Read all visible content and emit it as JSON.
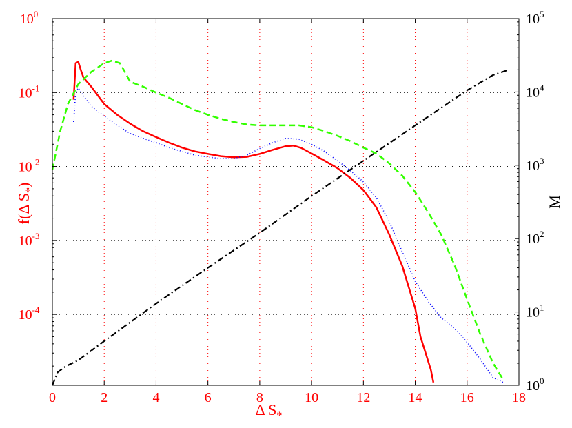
{
  "chart_data": {
    "type": "line",
    "xlabel": "Δ S",
    "xlabel_sub": "*",
    "ylabel": "f(Δ S",
    "ylabel_sub": "*",
    "ylabel_close": ")",
    "y2label": "M",
    "xlim": [
      0,
      18
    ],
    "ylim": [
      1.1e-05,
      1
    ],
    "y2lim": [
      1,
      100000
    ],
    "yscale": "log",
    "y2scale": "log",
    "grid": true,
    "x_ticks": [
      "0",
      "2",
      "4",
      "6",
      "8",
      "10",
      "12",
      "14",
      "16",
      "18"
    ],
    "y_ticks": [
      {
        "base": "10",
        "exp": "0",
        "value": 1
      },
      {
        "base": "10",
        "exp": "-1",
        "value": 0.1
      },
      {
        "base": "10",
        "exp": "-2",
        "value": 0.01
      },
      {
        "base": "10",
        "exp": "-3",
        "value": 0.001
      },
      {
        "base": "10",
        "exp": "-4",
        "value": 0.0001
      }
    ],
    "y2_ticks": [
      {
        "base": "10",
        "exp": "0",
        "value": 1
      },
      {
        "base": "10",
        "exp": "1",
        "value": 10
      },
      {
        "base": "10",
        "exp": "2",
        "value": 100
      },
      {
        "base": "10",
        "exp": "3",
        "value": 1000
      },
      {
        "base": "10",
        "exp": "4",
        "value": 10000
      },
      {
        "base": "10",
        "exp": "5",
        "value": 100000
      }
    ],
    "series": [
      {
        "axis": "left",
        "color": "#ff0000",
        "style": "solid",
        "x": [
          0.82,
          0.9,
          1.0,
          1.1,
          1.2,
          1.3,
          1.5,
          2.0,
          2.5,
          3.0,
          3.5,
          4.0,
          4.5,
          5.0,
          5.5,
          6.0,
          6.5,
          7.0,
          7.5,
          8.0,
          8.5,
          9.0,
          9.3,
          9.6,
          10.0,
          10.5,
          11.0,
          11.5,
          12.0,
          12.5,
          13.0,
          13.5,
          14.0,
          14.2,
          14.4,
          14.6,
          14.7
        ],
        "y": [
          0.08,
          0.25,
          0.26,
          0.2,
          0.16,
          0.145,
          0.12,
          0.07,
          0.05,
          0.038,
          0.03,
          0.025,
          0.021,
          0.018,
          0.016,
          0.0148,
          0.0138,
          0.0133,
          0.0135,
          0.0148,
          0.0168,
          0.0188,
          0.0192,
          0.0178,
          0.015,
          0.012,
          0.0095,
          0.007,
          0.0048,
          0.0028,
          0.0012,
          0.00045,
          0.00012,
          5e-05,
          3e-05,
          1.8e-05,
          1.2e-05
        ]
      },
      {
        "axis": "left",
        "color": "#0000ff",
        "style": "dotted",
        "x": [
          0.82,
          0.9,
          1.0,
          1.2,
          1.5,
          2.0,
          2.5,
          3.0,
          3.5,
          4.0,
          4.5,
          5.0,
          5.5,
          6.0,
          6.5,
          7.0,
          7.5,
          8.0,
          8.5,
          9.0,
          9.5,
          10.0,
          10.5,
          11.0,
          11.5,
          12.0,
          12.5,
          13.0,
          13.5,
          14.0,
          14.5,
          15.0,
          15.5,
          16.0,
          16.5,
          17.0,
          17.4
        ],
        "y": [
          0.04,
          0.1,
          0.115,
          0.09,
          0.065,
          0.048,
          0.036,
          0.028,
          0.024,
          0.021,
          0.018,
          0.016,
          0.0142,
          0.0134,
          0.0128,
          0.0128,
          0.0142,
          0.0175,
          0.021,
          0.024,
          0.0235,
          0.02,
          0.016,
          0.012,
          0.0088,
          0.0062,
          0.0038,
          0.0018,
          0.0007,
          0.00028,
          0.00015,
          9e-05,
          6.5e-05,
          4.2e-05,
          2.5e-05,
          1.4e-05,
          1.2e-05
        ]
      },
      {
        "axis": "left",
        "color": "#33ff00",
        "style": "dashed",
        "x": [
          0.0,
          0.3,
          0.6,
          1.0,
          1.5,
          2.0,
          2.3,
          2.6,
          2.8,
          3.0,
          3.5,
          4.0,
          4.5,
          5.0,
          5.5,
          6.0,
          6.5,
          7.0,
          7.5,
          8.0,
          8.5,
          9.0,
          9.5,
          10.0,
          10.5,
          11.0,
          11.5,
          12.0,
          12.5,
          13.0,
          13.5,
          14.0,
          14.5,
          15.0,
          15.5,
          16.0,
          16.5,
          17.0,
          17.4
        ],
        "y": [
          0.009,
          0.03,
          0.07,
          0.13,
          0.19,
          0.25,
          0.27,
          0.25,
          0.19,
          0.14,
          0.12,
          0.1,
          0.085,
          0.07,
          0.058,
          0.05,
          0.044,
          0.04,
          0.037,
          0.036,
          0.036,
          0.036,
          0.036,
          0.034,
          0.03,
          0.026,
          0.022,
          0.018,
          0.015,
          0.011,
          0.0075,
          0.0045,
          0.0024,
          0.0012,
          0.00048,
          0.00016,
          5.5e-05,
          2.2e-05,
          1.3e-05
        ]
      },
      {
        "axis": "right",
        "color": "#000000",
        "style": "dashdot",
        "x": [
          0.0,
          0.2,
          0.5,
          1.0,
          2.0,
          4.0,
          6.0,
          8.0,
          10.0,
          12.0,
          14.0,
          16.0,
          17.0,
          17.6
        ],
        "y": [
          1.0,
          1.5,
          1.8,
          2.2,
          4.0,
          13,
          40,
          120,
          380,
          1150,
          3500,
          10500,
          17000,
          20000
        ]
      }
    ]
  }
}
